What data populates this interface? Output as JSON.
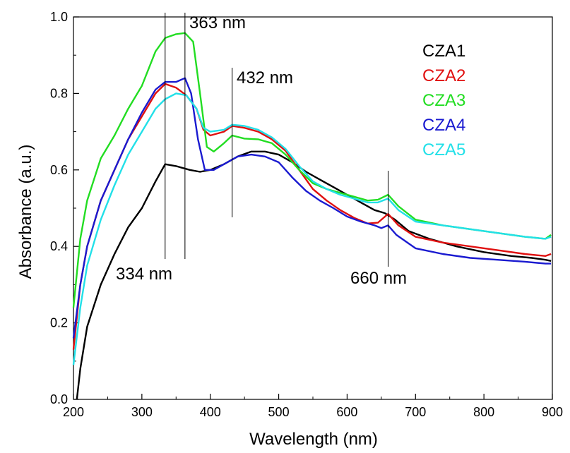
{
  "chart_data": {
    "type": "line",
    "xlabel": "Wavelength (nm)",
    "ylabel": "Absorbance (a.u.)",
    "xlim": [
      200,
      900
    ],
    "ylim": [
      0.0,
      1.0
    ],
    "xticks": [
      "200",
      "300",
      "400",
      "500",
      "600",
      "700",
      "800",
      "900"
    ],
    "yticks": [
      "0.0",
      "0.2",
      "0.4",
      "0.6",
      "0.8",
      "1.0"
    ],
    "grid": false,
    "legend_position": "top-right",
    "series": [
      {
        "name": "CZA1",
        "color": "#000000",
        "points": [
          [
            205,
            0.0
          ],
          [
            210,
            0.08
          ],
          [
            220,
            0.19
          ],
          [
            240,
            0.3
          ],
          [
            260,
            0.38
          ],
          [
            280,
            0.45
          ],
          [
            300,
            0.5
          ],
          [
            320,
            0.57
          ],
          [
            334,
            0.615
          ],
          [
            350,
            0.61
          ],
          [
            370,
            0.6
          ],
          [
            385,
            0.595
          ],
          [
            400,
            0.6
          ],
          [
            420,
            0.615
          ],
          [
            440,
            0.635
          ],
          [
            460,
            0.648
          ],
          [
            480,
            0.648
          ],
          [
            500,
            0.64
          ],
          [
            520,
            0.62
          ],
          [
            540,
            0.595
          ],
          [
            560,
            0.575
          ],
          [
            580,
            0.555
          ],
          [
            600,
            0.535
          ],
          [
            620,
            0.515
          ],
          [
            640,
            0.495
          ],
          [
            655,
            0.487
          ],
          [
            670,
            0.47
          ],
          [
            690,
            0.44
          ],
          [
            720,
            0.42
          ],
          [
            760,
            0.4
          ],
          [
            800,
            0.385
          ],
          [
            840,
            0.375
          ],
          [
            870,
            0.37
          ],
          [
            890,
            0.365
          ],
          [
            898,
            0.362
          ]
        ]
      },
      {
        "name": "CZA2",
        "color": "#e01010",
        "points": [
          [
            200,
            0.13
          ],
          [
            210,
            0.3
          ],
          [
            220,
            0.4
          ],
          [
            240,
            0.52
          ],
          [
            260,
            0.6
          ],
          [
            280,
            0.68
          ],
          [
            300,
            0.74
          ],
          [
            320,
            0.8
          ],
          [
            334,
            0.825
          ],
          [
            350,
            0.815
          ],
          [
            365,
            0.795
          ],
          [
            380,
            0.76
          ],
          [
            390,
            0.705
          ],
          [
            400,
            0.69
          ],
          [
            420,
            0.7
          ],
          [
            432,
            0.715
          ],
          [
            450,
            0.71
          ],
          [
            470,
            0.7
          ],
          [
            490,
            0.68
          ],
          [
            510,
            0.65
          ],
          [
            530,
            0.6
          ],
          [
            550,
            0.55
          ],
          [
            570,
            0.52
          ],
          [
            590,
            0.495
          ],
          [
            610,
            0.475
          ],
          [
            630,
            0.46
          ],
          [
            645,
            0.462
          ],
          [
            660,
            0.485
          ],
          [
            675,
            0.455
          ],
          [
            700,
            0.425
          ],
          [
            740,
            0.41
          ],
          [
            780,
            0.4
          ],
          [
            820,
            0.39
          ],
          [
            860,
            0.38
          ],
          [
            890,
            0.375
          ],
          [
            898,
            0.38
          ]
        ]
      },
      {
        "name": "CZA3",
        "color": "#22dd22",
        "points": [
          [
            200,
            0.24
          ],
          [
            210,
            0.42
          ],
          [
            220,
            0.52
          ],
          [
            240,
            0.63
          ],
          [
            260,
            0.69
          ],
          [
            280,
            0.76
          ],
          [
            300,
            0.82
          ],
          [
            320,
            0.91
          ],
          [
            334,
            0.945
          ],
          [
            350,
            0.955
          ],
          [
            363,
            0.958
          ],
          [
            375,
            0.935
          ],
          [
            385,
            0.8
          ],
          [
            395,
            0.66
          ],
          [
            405,
            0.648
          ],
          [
            420,
            0.67
          ],
          [
            432,
            0.69
          ],
          [
            450,
            0.682
          ],
          [
            470,
            0.68
          ],
          [
            490,
            0.67
          ],
          [
            510,
            0.64
          ],
          [
            530,
            0.6
          ],
          [
            550,
            0.565
          ],
          [
            570,
            0.55
          ],
          [
            590,
            0.54
          ],
          [
            610,
            0.53
          ],
          [
            630,
            0.52
          ],
          [
            645,
            0.522
          ],
          [
            660,
            0.535
          ],
          [
            675,
            0.505
          ],
          [
            700,
            0.47
          ],
          [
            740,
            0.455
          ],
          [
            780,
            0.445
          ],
          [
            820,
            0.435
          ],
          [
            860,
            0.425
          ],
          [
            890,
            0.42
          ],
          [
            898,
            0.43
          ]
        ]
      },
      {
        "name": "CZA4",
        "color": "#1a1ad0",
        "points": [
          [
            200,
            0.16
          ],
          [
            210,
            0.3
          ],
          [
            220,
            0.4
          ],
          [
            240,
            0.52
          ],
          [
            260,
            0.6
          ],
          [
            280,
            0.68
          ],
          [
            300,
            0.75
          ],
          [
            320,
            0.81
          ],
          [
            334,
            0.83
          ],
          [
            350,
            0.83
          ],
          [
            363,
            0.84
          ],
          [
            372,
            0.8
          ],
          [
            382,
            0.68
          ],
          [
            392,
            0.6
          ],
          [
            405,
            0.6
          ],
          [
            420,
            0.615
          ],
          [
            440,
            0.635
          ],
          [
            460,
            0.64
          ],
          [
            480,
            0.635
          ],
          [
            500,
            0.62
          ],
          [
            520,
            0.58
          ],
          [
            540,
            0.545
          ],
          [
            560,
            0.52
          ],
          [
            580,
            0.5
          ],
          [
            600,
            0.478
          ],
          [
            620,
            0.465
          ],
          [
            640,
            0.455
          ],
          [
            650,
            0.448
          ],
          [
            660,
            0.455
          ],
          [
            672,
            0.43
          ],
          [
            700,
            0.395
          ],
          [
            740,
            0.38
          ],
          [
            780,
            0.37
          ],
          [
            820,
            0.365
          ],
          [
            860,
            0.36
          ],
          [
            890,
            0.355
          ],
          [
            898,
            0.355
          ]
        ]
      },
      {
        "name": "CZA5",
        "color": "#22e0e8",
        "points": [
          [
            200,
            0.09
          ],
          [
            210,
            0.24
          ],
          [
            220,
            0.35
          ],
          [
            240,
            0.47
          ],
          [
            260,
            0.56
          ],
          [
            280,
            0.64
          ],
          [
            300,
            0.7
          ],
          [
            320,
            0.76
          ],
          [
            334,
            0.785
          ],
          [
            350,
            0.8
          ],
          [
            365,
            0.795
          ],
          [
            380,
            0.76
          ],
          [
            390,
            0.71
          ],
          [
            400,
            0.7
          ],
          [
            420,
            0.705
          ],
          [
            432,
            0.718
          ],
          [
            450,
            0.715
          ],
          [
            470,
            0.705
          ],
          [
            490,
            0.685
          ],
          [
            510,
            0.655
          ],
          [
            530,
            0.61
          ],
          [
            550,
            0.57
          ],
          [
            570,
            0.55
          ],
          [
            590,
            0.535
          ],
          [
            610,
            0.525
          ],
          [
            630,
            0.515
          ],
          [
            645,
            0.515
          ],
          [
            660,
            0.525
          ],
          [
            675,
            0.495
          ],
          [
            700,
            0.465
          ],
          [
            740,
            0.455
          ],
          [
            780,
            0.445
          ],
          [
            820,
            0.435
          ],
          [
            860,
            0.425
          ],
          [
            890,
            0.42
          ],
          [
            898,
            0.425
          ]
        ]
      }
    ],
    "annotations": [
      {
        "label": "334 nm",
        "x": 334
      },
      {
        "label": "363 nm",
        "x": 363
      },
      {
        "label": "432 nm",
        "x": 432
      },
      {
        "label": "660 nm",
        "x": 660
      }
    ]
  }
}
